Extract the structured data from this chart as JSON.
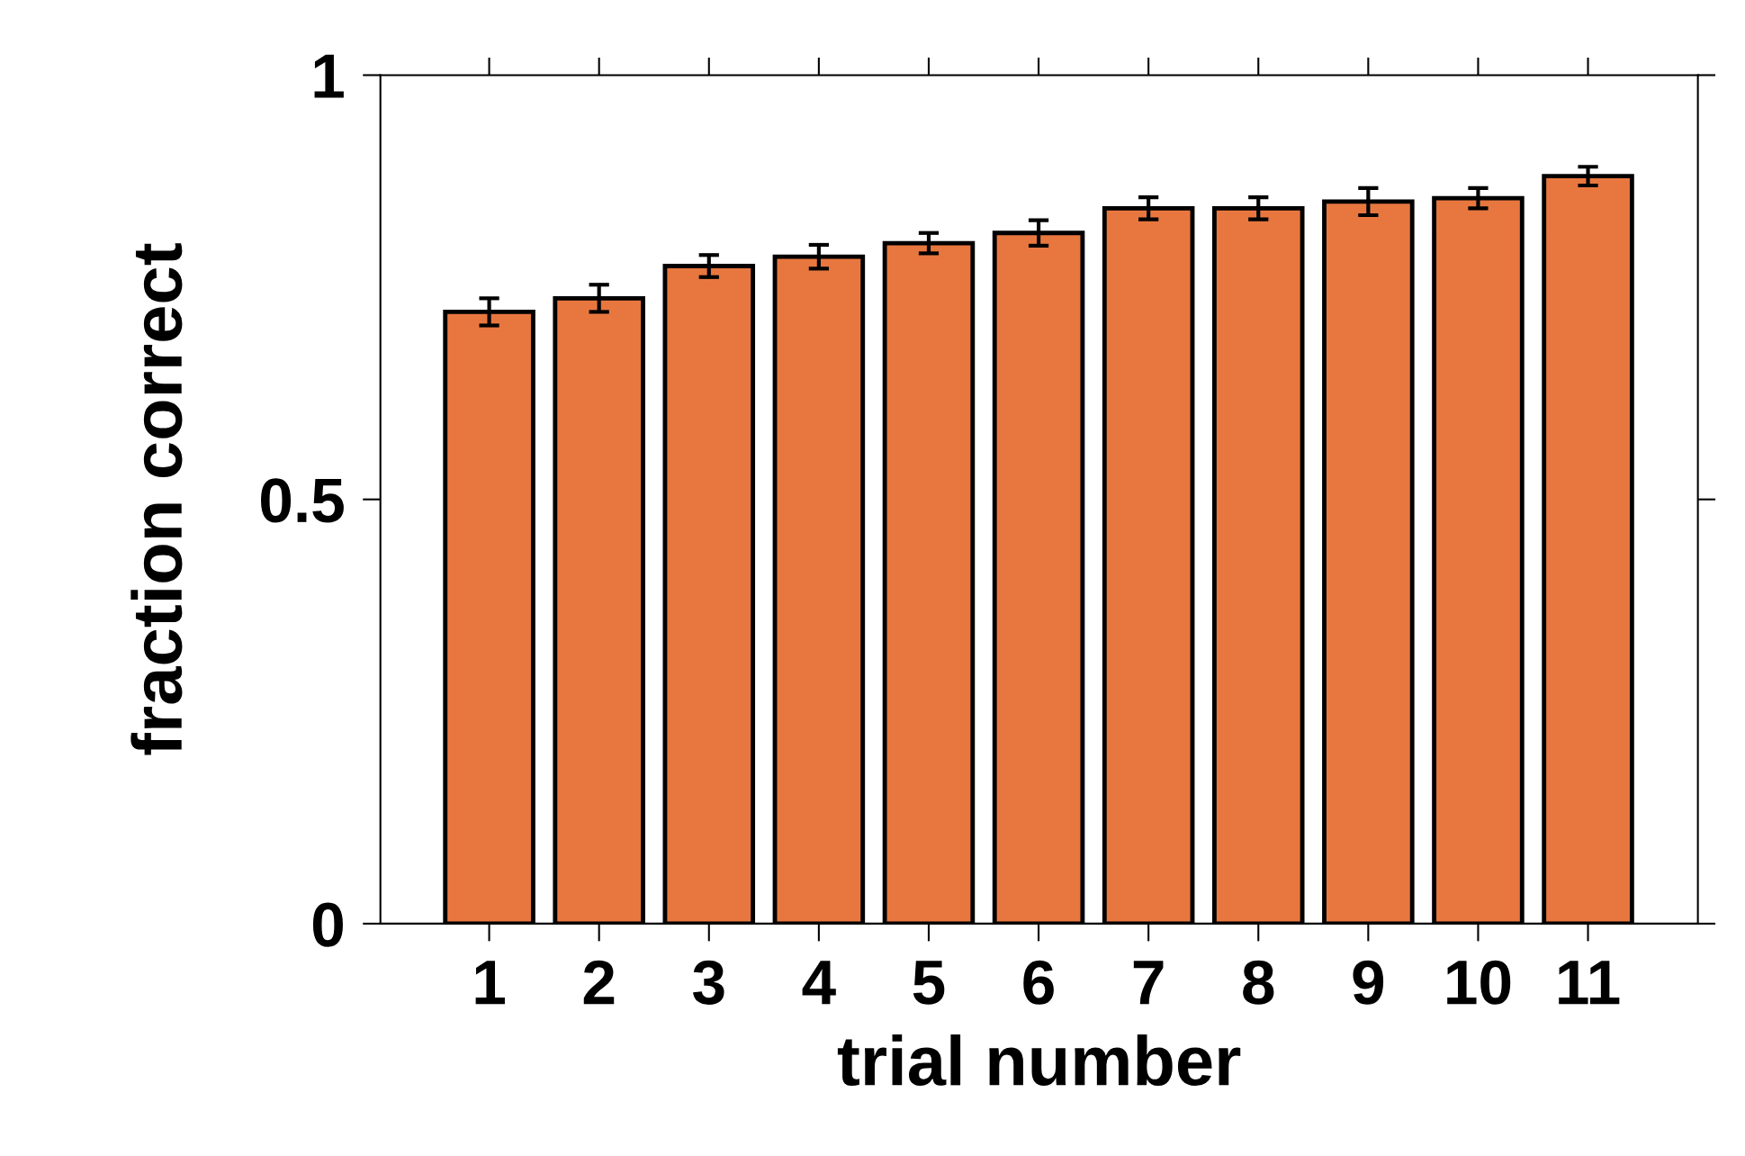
{
  "chart_data": {
    "type": "bar",
    "xlabel": "trial number",
    "ylabel": "fraction correct",
    "categories": [
      "1",
      "2",
      "3",
      "4",
      "5",
      "6",
      "7",
      "8",
      "9",
      "10",
      "11"
    ],
    "values": [
      0.721,
      0.737,
      0.775,
      0.786,
      0.802,
      0.814,
      0.843,
      0.843,
      0.851,
      0.855,
      0.881
    ],
    "errors": [
      0.016,
      0.016,
      0.013,
      0.014,
      0.012,
      0.015,
      0.013,
      0.013,
      0.016,
      0.012,
      0.011
    ],
    "color": "#e8773f",
    "ylim": [
      0,
      1
    ],
    "yticks": [
      0,
      0.5,
      1
    ],
    "grid": false,
    "legend": false
  }
}
